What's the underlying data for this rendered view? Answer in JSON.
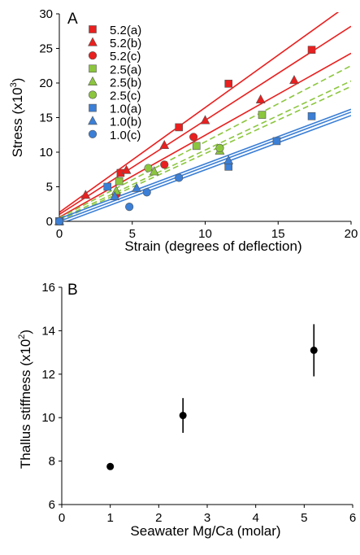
{
  "chart_data": [
    {
      "panel_label": "A",
      "type": "scatter",
      "xlabel": "Strain (degrees of deflection)",
      "ylabel_main": "Stress (x10",
      "ylabel_exp": "3",
      "ylabel_close": ")",
      "xlim": [
        0,
        20
      ],
      "ylim": [
        0,
        30
      ],
      "x_ticks": [
        "0",
        "5",
        "10",
        "15",
        "20"
      ],
      "y_ticks": [
        "0",
        "5",
        "10",
        "15",
        "20",
        "25",
        "30"
      ],
      "x_tick_values": [
        0,
        5,
        10,
        15,
        20
      ],
      "y_tick_values": [
        0,
        5,
        10,
        15,
        20,
        25,
        30
      ],
      "legend_position": "top-left",
      "series": [
        {
          "name": "5.2(a)",
          "marker": "square",
          "color": "#e8201f",
          "dashed": false,
          "points": [
            [
              0,
              0
            ],
            [
              4.2,
              7
            ],
            [
              8.2,
              13.6
            ],
            [
              11.6,
              19.9
            ],
            [
              17.3,
              24.8
            ]
          ],
          "fit": [
            [
              0,
              1.3
            ],
            [
              20,
              31.6
            ]
          ]
        },
        {
          "name": "5.2(b)",
          "marker": "triangle",
          "color": "#e8201f",
          "dashed": false,
          "points": [
            [
              0,
              0
            ],
            [
              1.8,
              3.8
            ],
            [
              4.6,
              7.4
            ],
            [
              7.2,
              11
            ],
            [
              10,
              14.6
            ],
            [
              13.8,
              17.6
            ],
            [
              16.1,
              20.4
            ]
          ],
          "fit": [
            [
              0,
              1
            ],
            [
              20,
              28.2
            ]
          ]
        },
        {
          "name": "5.2(c)",
          "marker": "circle",
          "color": "#e8201f",
          "dashed": false,
          "points": [
            [
              0,
              0
            ],
            [
              3.9,
              3.9
            ],
            [
              7.2,
              8.2
            ],
            [
              9.2,
              12.2
            ]
          ],
          "fit": [
            [
              0,
              0.6
            ],
            [
              20,
              24.3
            ]
          ]
        },
        {
          "name": "2.5(a)",
          "marker": "square",
          "color": "#8cc63e",
          "dashed": true,
          "points": [
            [
              0,
              0
            ],
            [
              4.1,
              5.8
            ],
            [
              9.4,
              10.9
            ],
            [
              13.9,
              15.4
            ]
          ],
          "fit": [
            [
              0,
              0.5
            ],
            [
              20,
              22.5
            ]
          ]
        },
        {
          "name": "2.5(b)",
          "marker": "triangle",
          "color": "#8cc63e",
          "dashed": true,
          "points": [
            [
              0,
              0
            ],
            [
              3.9,
              4.4
            ],
            [
              6.5,
              7.2
            ],
            [
              11,
              10.2
            ]
          ],
          "fit": [
            [
              0,
              0.3
            ],
            [
              20,
              20.3
            ]
          ]
        },
        {
          "name": "2.5(c)",
          "marker": "circle",
          "color": "#8cc63e",
          "dashed": true,
          "points": [
            [
              0,
              0
            ],
            [
              6.1,
              7.7
            ],
            [
              11,
              10.6
            ]
          ],
          "fit": [
            [
              0,
              0.1
            ],
            [
              20,
              19.5
            ]
          ]
        },
        {
          "name": "1.0(a)",
          "marker": "square",
          "color": "#3b7fd6",
          "dashed": false,
          "points": [
            [
              0,
              0
            ],
            [
              3.3,
              5
            ],
            [
              11.6,
              7.9
            ],
            [
              14.9,
              11.6
            ],
            [
              17.3,
              15.2
            ]
          ],
          "fit": [
            [
              0,
              0.4
            ],
            [
              20,
              16.2
            ]
          ]
        },
        {
          "name": "1.0(b)",
          "marker": "triangle",
          "color": "#3b7fd6",
          "dashed": false,
          "points": [
            [
              0,
              0
            ],
            [
              3.8,
              3.6
            ],
            [
              5.3,
              4.8
            ],
            [
              11.6,
              8.8
            ]
          ],
          "fit": [
            [
              0,
              0
            ],
            [
              20,
              15.8
            ]
          ]
        },
        {
          "name": "1.0(c)",
          "marker": "circle",
          "color": "#3b7fd6",
          "dashed": false,
          "points": [
            [
              0,
              0
            ],
            [
              4.8,
              2.1
            ],
            [
              6,
              4.2
            ],
            [
              8.2,
              6.3
            ]
          ],
          "fit": [
            [
              0,
              -0.4
            ],
            [
              20,
              15.3
            ]
          ]
        }
      ]
    },
    {
      "panel_label": "B",
      "type": "scatter",
      "xlabel": "Seawater Mg/Ca (molar)",
      "ylabel_main": "Thallus stiffness (x10",
      "ylabel_exp": "2",
      "ylabel_close": ")",
      "xlim": [
        0,
        6
      ],
      "ylim": [
        6,
        16
      ],
      "x_ticks": [
        "0",
        "1",
        "2",
        "3",
        "4",
        "5",
        "6"
      ],
      "y_ticks": [
        "6",
        "8",
        "10",
        "12",
        "14",
        "16"
      ],
      "x_tick_values": [
        0,
        1,
        2,
        3,
        4,
        5,
        6
      ],
      "y_tick_values": [
        6,
        8,
        10,
        12,
        14,
        16
      ],
      "color": "#000000",
      "points": [
        {
          "x": 1.0,
          "y": 7.75,
          "err": 0
        },
        {
          "x": 2.5,
          "y": 10.1,
          "err": 0.8
        },
        {
          "x": 5.2,
          "y": 13.1,
          "err": 1.2
        }
      ]
    }
  ]
}
